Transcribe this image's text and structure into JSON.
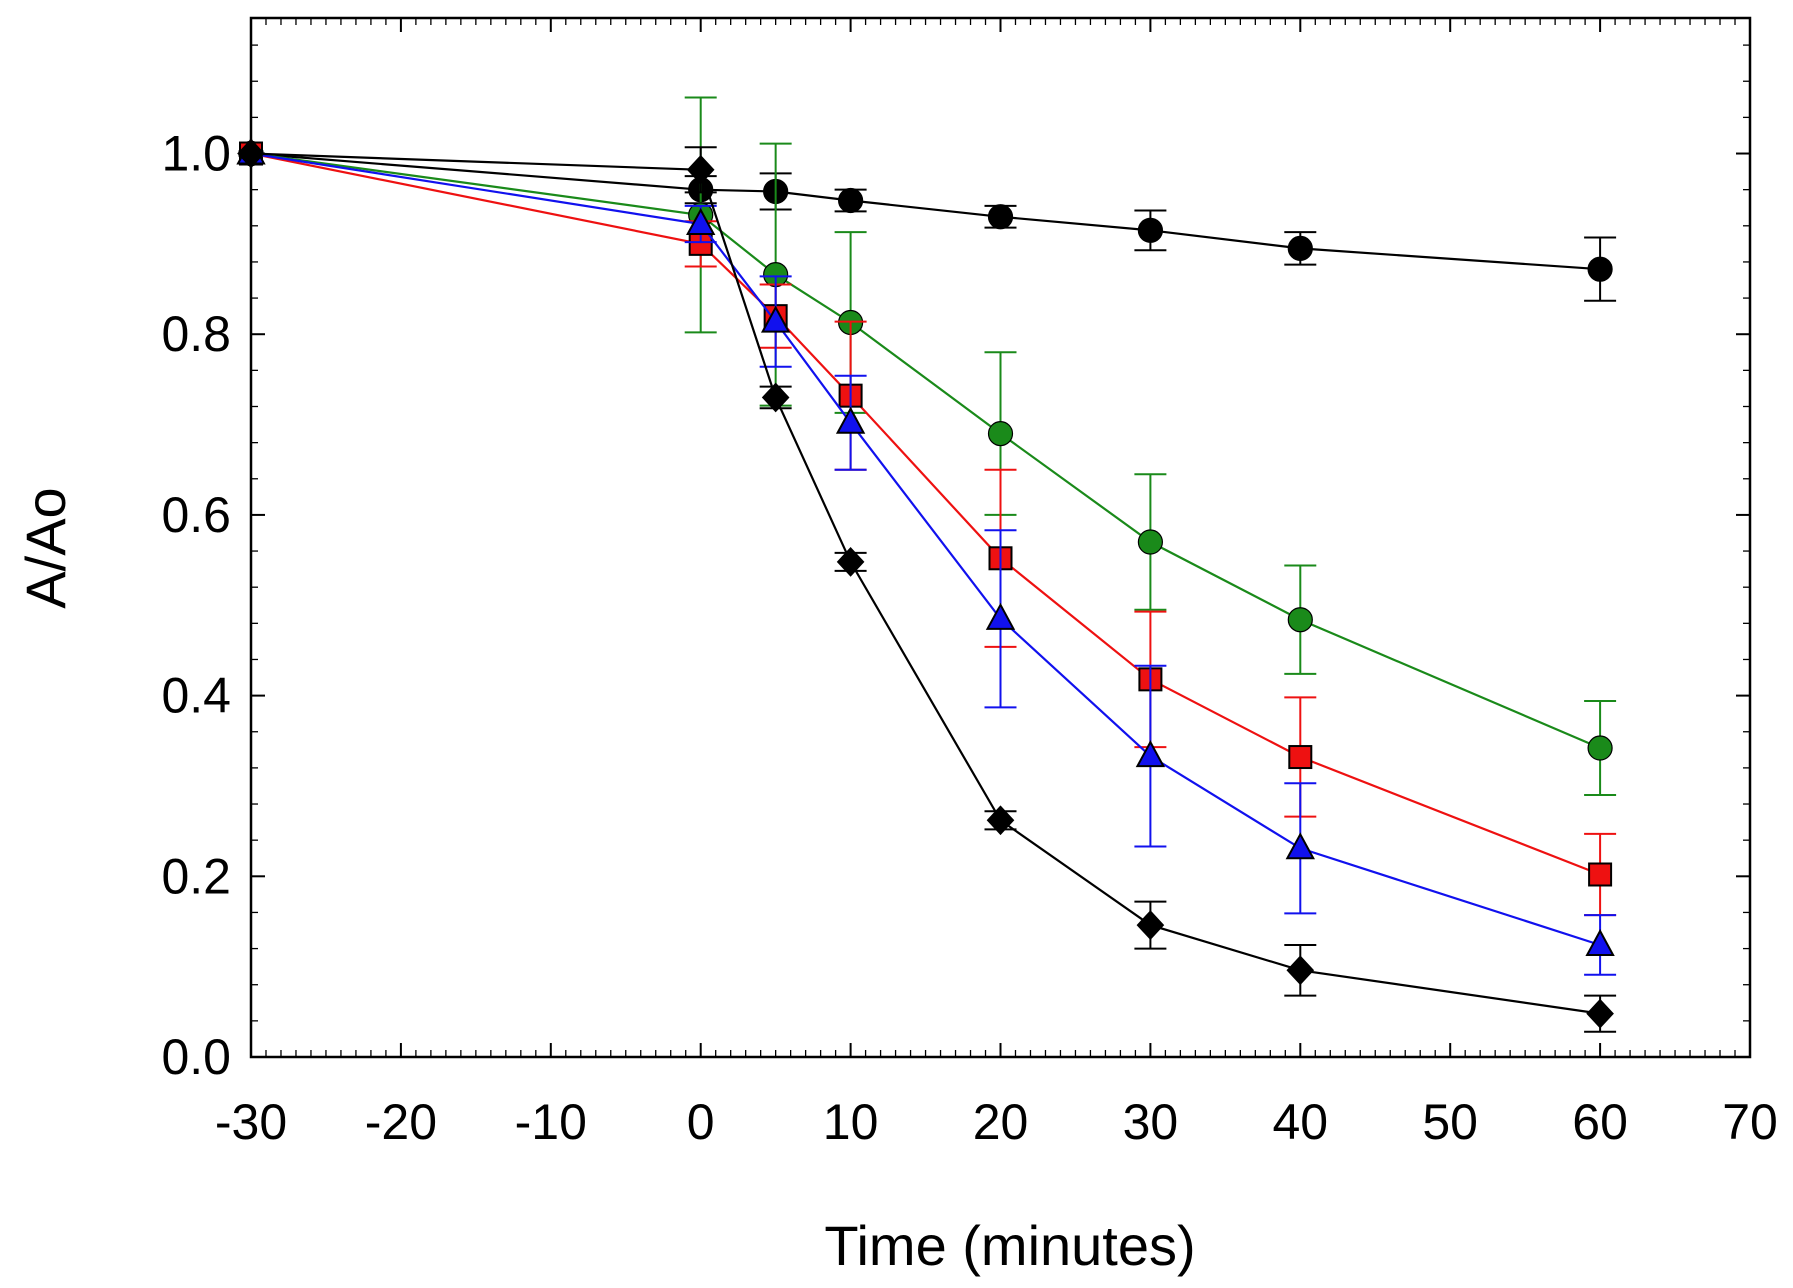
{
  "chart_data": {
    "type": "line",
    "title": "",
    "xlabel": "Time (minutes)",
    "ylabel": "A/Ao",
    "xlim": [
      -30,
      70
    ],
    "ylim": [
      0.0,
      1.15
    ],
    "x_ticks": [
      -30,
      -20,
      -10,
      0,
      10,
      20,
      30,
      40,
      50,
      60,
      70
    ],
    "x_tick_labels": [
      "-30",
      "-20",
      "-10",
      "0",
      "10",
      "20",
      "30",
      "40",
      "50",
      "60",
      "70"
    ],
    "y_ticks": [
      0.0,
      0.2,
      0.4,
      0.6,
      0.8,
      1.0
    ],
    "y_tick_labels": [
      "0.0",
      "0.2",
      "0.4",
      "0.6",
      "0.8",
      "1.0"
    ],
    "grid": false,
    "legend": "none",
    "series": [
      {
        "color": "#000000",
        "marker": "circle",
        "x": [
          -30,
          0,
          5,
          10,
          20,
          30,
          40,
          60
        ],
        "y": [
          1.0,
          0.96,
          0.958,
          0.948,
          0.93,
          0.915,
          0.895,
          0.872
        ],
        "err": [
          0.0,
          0.015,
          0.02,
          0.012,
          0.012,
          0.022,
          0.018,
          0.035
        ]
      },
      {
        "color": "#1a8a1a",
        "marker": "circle",
        "x": [
          -30,
          0,
          5,
          10,
          20,
          30,
          40,
          60
        ],
        "y": [
          1.0,
          0.932,
          0.866,
          0.813,
          0.69,
          0.57,
          0.484,
          0.342
        ],
        "err": [
          0.0,
          0.13,
          0.145,
          0.1,
          0.09,
          0.075,
          0.06,
          0.052
        ]
      },
      {
        "color": "#ee1111",
        "marker": "square",
        "x": [
          -30,
          0,
          5,
          10,
          20,
          30,
          40,
          60
        ],
        "y": [
          1.0,
          0.9,
          0.82,
          0.732,
          0.552,
          0.418,
          0.332,
          0.202
        ],
        "err": [
          0.0,
          0.025,
          0.035,
          0.082,
          0.098,
          0.075,
          0.066,
          0.045
        ]
      },
      {
        "color": "#1111ee",
        "marker": "triangle",
        "x": [
          -30,
          0,
          5,
          10,
          20,
          30,
          40,
          60
        ],
        "y": [
          1.0,
          0.922,
          0.814,
          0.702,
          0.485,
          0.333,
          0.231,
          0.124
        ],
        "err": [
          0.0,
          0.02,
          0.05,
          0.052,
          0.098,
          0.1,
          0.072,
          0.033
        ]
      },
      {
        "color": "#000000",
        "marker": "diamond",
        "x": [
          -30,
          0,
          5,
          10,
          20,
          30,
          40,
          60
        ],
        "y": [
          1.0,
          0.982,
          0.73,
          0.548,
          0.262,
          0.146,
          0.096,
          0.048
        ],
        "err": [
          0.0,
          0.025,
          0.012,
          0.01,
          0.01,
          0.026,
          0.028,
          0.02
        ]
      }
    ]
  }
}
